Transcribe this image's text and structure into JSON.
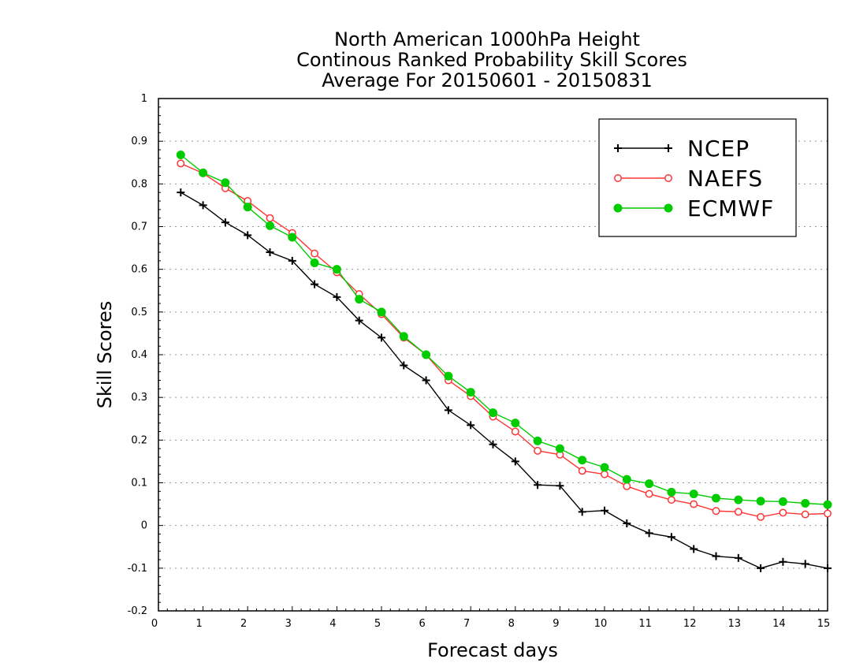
{
  "chart_data": {
    "type": "line",
    "title_lines": [
      "North American 1000hPa Height",
      "Continous Ranked Probability Skill Scores",
      "Average For 20150601 - 20150831"
    ],
    "xlabel": "Forecast days",
    "ylabel": "Skill Scores",
    "xlim": [
      0,
      15
    ],
    "ylim": [
      -0.2,
      1
    ],
    "xticks": [
      "0",
      "1",
      "2",
      "3",
      "4",
      "5",
      "6",
      "7",
      "8",
      "9",
      "10",
      "11",
      "12",
      "13",
      "14",
      "15"
    ],
    "yticks": [
      "-0.2",
      "-0.1",
      "0",
      "0.1",
      "0.2",
      "0.3",
      "0.4",
      "0.5",
      "0.6",
      "0.7",
      "0.8",
      "0.9",
      "1"
    ],
    "grid": "horizontal dotted",
    "legend_position": "top-right",
    "x": [
      0.5,
      1,
      1.5,
      2,
      2.5,
      3,
      3.5,
      4,
      4.5,
      5,
      5.5,
      6,
      6.5,
      7,
      7.5,
      8,
      8.5,
      9,
      9.5,
      10,
      10.5,
      11,
      11.5,
      12,
      12.5,
      13,
      13.5,
      14,
      14.5,
      15
    ],
    "series": [
      {
        "name": "NCEP",
        "color": "#000000",
        "marker": "plus",
        "values": [
          0.78,
          0.75,
          0.71,
          0.68,
          0.64,
          0.62,
          0.565,
          0.535,
          0.48,
          0.44,
          0.375,
          0.34,
          0.27,
          0.235,
          0.19,
          0.15,
          0.095,
          0.093,
          0.032,
          0.035,
          0.005,
          -0.018,
          -0.027,
          -0.055,
          -0.072,
          -0.076,
          -0.1,
          -0.085,
          -0.09,
          -0.1
        ]
      },
      {
        "name": "NAEFS",
        "color": "#ff3333",
        "marker": "open-circle",
        "values": [
          0.848,
          0.825,
          0.79,
          0.76,
          0.72,
          0.685,
          0.637,
          0.593,
          0.542,
          0.495,
          0.44,
          0.4,
          0.34,
          0.303,
          0.255,
          0.22,
          0.175,
          0.166,
          0.128,
          0.12,
          0.092,
          0.074,
          0.06,
          0.05,
          0.034,
          0.032,
          0.02,
          0.03,
          0.026,
          0.028
        ]
      },
      {
        "name": "ECMWF",
        "color": "#00cc00",
        "marker": "filled-circle",
        "values": [
          0.868,
          0.826,
          0.803,
          0.746,
          0.702,
          0.675,
          0.615,
          0.6,
          0.53,
          0.5,
          0.443,
          0.4,
          0.35,
          0.312,
          0.264,
          0.24,
          0.198,
          0.18,
          0.153,
          0.136,
          0.108,
          0.098,
          0.078,
          0.074,
          0.064,
          0.06,
          0.057,
          0.056,
          0.052,
          0.049
        ]
      }
    ]
  }
}
